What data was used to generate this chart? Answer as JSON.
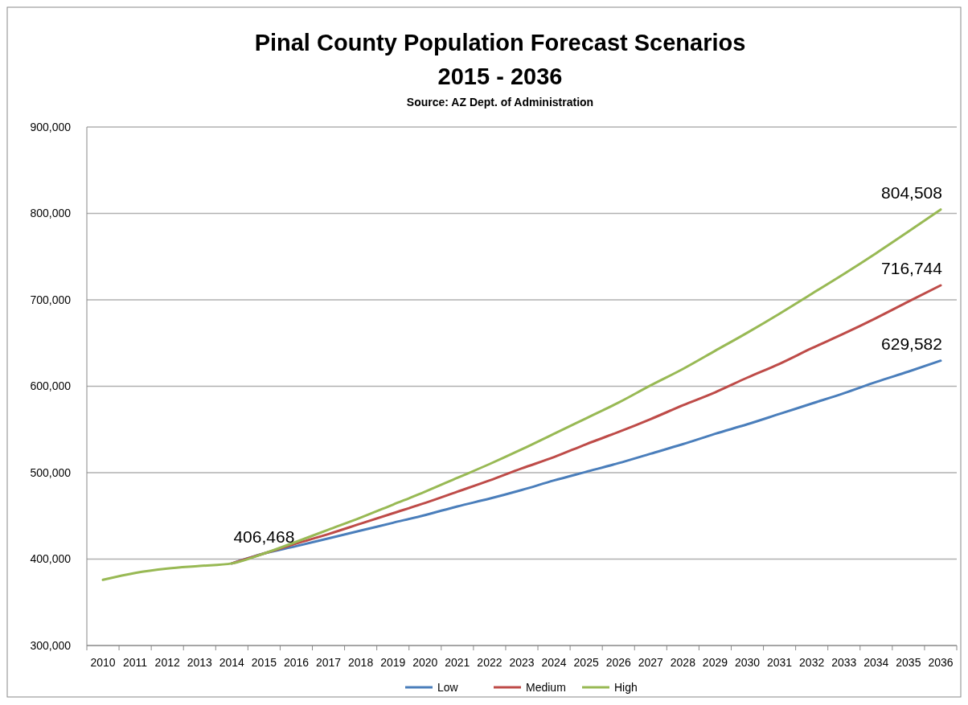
{
  "chart_data": {
    "type": "line",
    "title": "Pinal County Population Forecast Scenarios\n2015 - 2036",
    "categories": [
      "2010",
      "2011",
      "2012",
      "2013",
      "2014",
      "2015",
      "2016",
      "2017",
      "2018",
      "2019",
      "2020",
      "2021",
      "2022",
      "2023",
      "2024",
      "2025",
      "2026",
      "2027",
      "2028",
      "2029",
      "2030",
      "2031",
      "2032",
      "2033",
      "2034",
      "2035",
      "2036"
    ],
    "series": [
      {
        "name": "Low",
        "color": "#4a7ebb",
        "values": [
          null,
          null,
          null,
          null,
          395000,
          406468,
          415000,
          424000,
          433000,
          442000,
          451000,
          461000,
          470000,
          480000,
          491000,
          501000,
          511000,
          522000,
          533000,
          545000,
          556000,
          568000,
          580000,
          592000,
          605000,
          617000,
          629582
        ]
      },
      {
        "name": "Medium",
        "color": "#be4b48",
        "values": [
          null,
          null,
          null,
          null,
          395000,
          406468,
          418000,
          429000,
          441000,
          453000,
          465000,
          478000,
          491000,
          505000,
          518000,
          533000,
          547000,
          562000,
          578000,
          593000,
          610000,
          626000,
          644000,
          661000,
          679000,
          698000,
          716744
        ]
      },
      {
        "name": "High",
        "color": "#98b954",
        "values": [
          376000,
          384000,
          389000,
          392000,
          395000,
          406468,
          420000,
          434000,
          448000,
          463000,
          478000,
          494000,
          510000,
          527000,
          545000,
          563000,
          581000,
          601000,
          620000,
          641000,
          662000,
          684000,
          707000,
          730000,
          754000,
          779000,
          804508
        ]
      }
    ],
    "ylim": [
      300000,
      900000
    ],
    "yticks": [
      {
        "value": 300000,
        "label": "300,000"
      },
      {
        "value": 400000,
        "label": "400,000"
      },
      {
        "value": 500000,
        "label": "500,000"
      },
      {
        "value": 600000,
        "label": "600,000"
      },
      {
        "value": 700000,
        "label": "700,000"
      },
      {
        "value": 800000,
        "label": "800,000"
      },
      {
        "value": 900000,
        "label": "900,000"
      }
    ],
    "grid": "y",
    "legend": "bottom",
    "marker": "none",
    "line_style": "solid",
    "annotations": [
      "Source: AZ Dept. of Administration",
      {
        "text": "406,468",
        "x": "2015",
        "y": 406468
      },
      {
        "text": "804,508",
        "x": "2036",
        "y": 804508
      },
      {
        "text": "716,744",
        "x": "2036",
        "y": 716744
      },
      {
        "text": "629,582",
        "x": "2036",
        "y": 629582
      }
    ]
  }
}
